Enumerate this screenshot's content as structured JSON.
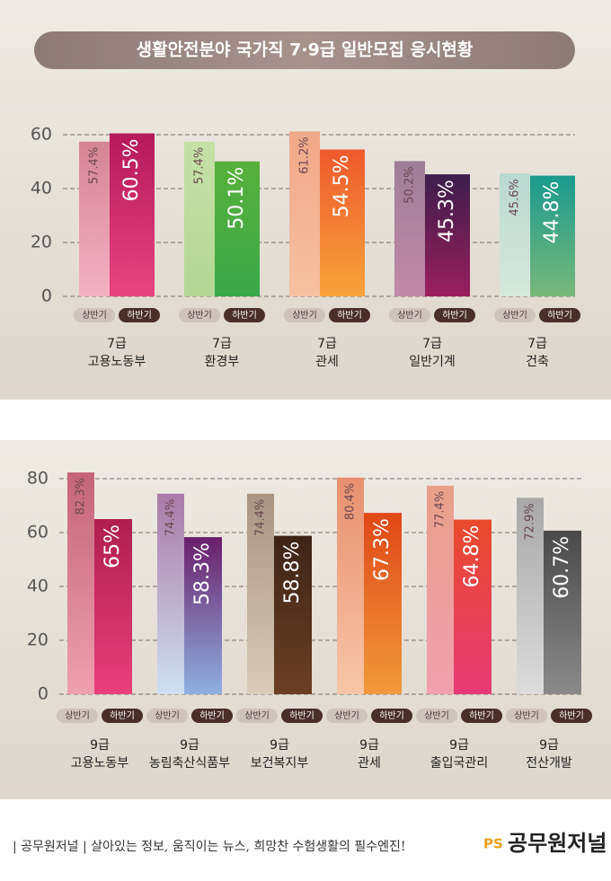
{
  "title": "생활안전분야 국가직 7·9급 일반모집 응시현황",
  "chart_data": [
    {
      "type": "bar",
      "categories": [
        [
          "7급",
          "고용노동부"
        ],
        [
          "7급",
          "환경부"
        ],
        [
          "7급",
          "관세"
        ],
        [
          "7급",
          "일반기계"
        ],
        [
          "7급",
          "건축"
        ]
      ],
      "series": [
        {
          "name": "상반기",
          "values": [
            57.4,
            57.4,
            61.2,
            50.2,
            45.6
          ],
          "value_labels": [
            "57.4%",
            "57.4%",
            "61.2%",
            "50.2%",
            "45.6%"
          ],
          "colors": [
            [
              "#d48595",
              "#f3b1c4"
            ],
            [
              "#c6e0a6",
              "#b3d794"
            ],
            [
              "#f0a888",
              "#f6c1a0"
            ],
            [
              "#9e7e96",
              "#c08aa8"
            ],
            [
              "#b9d9d0",
              "#d8e8dc"
            ]
          ]
        },
        {
          "name": "하반기",
          "values": [
            60.5,
            50.1,
            54.5,
            45.3,
            44.8
          ],
          "value_labels": [
            "60.5%",
            "50.1%",
            "54.5%",
            "45.3%",
            "44.8%"
          ],
          "colors": [
            [
              "#b5195a",
              "#e8457f"
            ],
            [
              "#58b03a",
              "#3aa84a"
            ],
            [
              "#ee5a2e",
              "#f7a33a"
            ],
            [
              "#3c1e4c",
              "#9a1f5c"
            ],
            [
              "#1a9a8e",
              "#78b87a"
            ]
          ]
        }
      ],
      "ylim": [
        0,
        63
      ],
      "yticks": [
        0,
        20,
        40,
        60
      ],
      "grid": true
    },
    {
      "type": "bar",
      "categories": [
        [
          "9급",
          "고용노동부"
        ],
        [
          "9급",
          "농림축산식품부"
        ],
        [
          "9급",
          "보건복지부"
        ],
        [
          "9급",
          "관세"
        ],
        [
          "9급",
          "출입국관리"
        ],
        [
          "9급",
          "전산개발"
        ]
      ],
      "series": [
        {
          "name": "상반기",
          "values": [
            82.3,
            74.4,
            74.4,
            80.4,
            77.4,
            72.9
          ],
          "value_labels": [
            "82.3%",
            "74.4%",
            "74.4%",
            "80.4%",
            "77.4%",
            "72.9%"
          ],
          "colors": [
            [
              "#c5647a",
              "#eea0b0"
            ],
            [
              "#a97aa8",
              "#cfe0f0"
            ],
            [
              "#a89480",
              "#d8ccb8"
            ],
            [
              "#e8906e",
              "#f7c6a8"
            ],
            [
              "#e8a08a",
              "#f2a0b0"
            ],
            [
              "#a8a8a8",
              "#dcdcdc"
            ]
          ]
        },
        {
          "name": "하반기",
          "values": [
            65,
            58.3,
            58.8,
            67.3,
            64.8,
            60.7
          ],
          "value_labels": [
            "65%",
            "58.3%",
            "58.8%",
            "67.3%",
            "64.8%",
            "60.7%"
          ],
          "colors": [
            [
              "#b01e4e",
              "#e8407a"
            ],
            [
              "#6a1f6a",
              "#8fb0e0"
            ],
            [
              "#3e2416",
              "#6a4024"
            ],
            [
              "#e04818",
              "#f09a3a"
            ],
            [
              "#e84a2a",
              "#e83a78"
            ],
            [
              "#4a4a4a",
              "#8a8a8a"
            ]
          ]
        }
      ],
      "ylim": [
        0,
        85
      ],
      "yticks": [
        0,
        20,
        40,
        60,
        80
      ],
      "grid": true
    }
  ],
  "footer": {
    "text": "| 공무원저널 |  살아있는 정보, 움직이는 뉴스, 희망찬 수험생활의 필수엔진!",
    "logo": "공무원저널"
  }
}
